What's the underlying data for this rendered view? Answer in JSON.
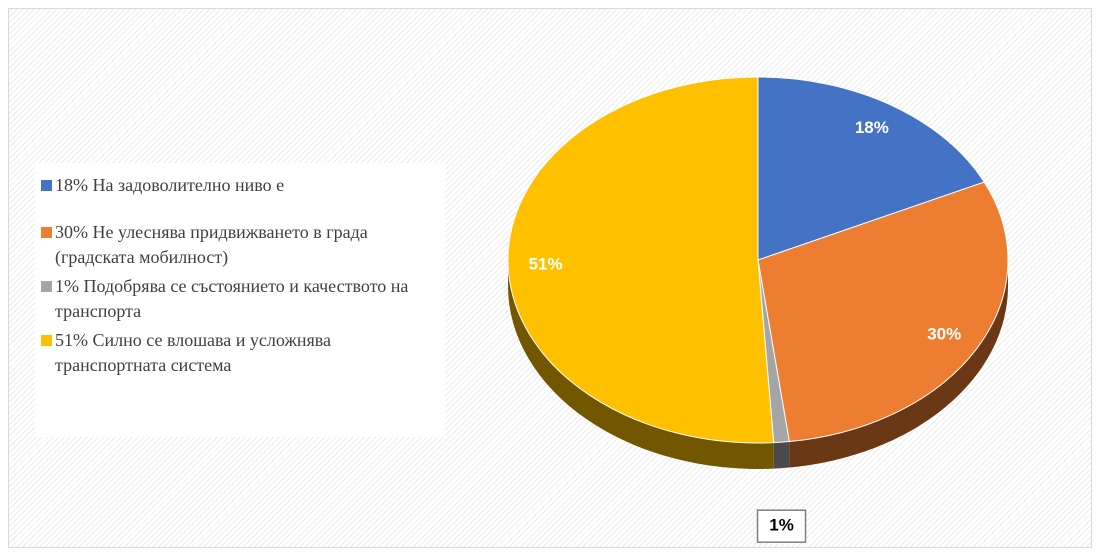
{
  "chart_data": {
    "type": "pie",
    "categories": [
      "18% На задоволително ниво е",
      "30% Не улеснява придвижването в града (градската мобилност)",
      "1% Подобрява се състоянието и качеството на транспорта",
      "51% Силно се влошава и усложнява транспортната система"
    ],
    "values": [
      18,
      30,
      1,
      51
    ],
    "value_labels": [
      "18%",
      "30%",
      "1%",
      "51%"
    ],
    "colors": [
      "#4472c4",
      "#ed7d31",
      "#a5a5a5",
      "#ffc000"
    ],
    "legend": "left"
  }
}
